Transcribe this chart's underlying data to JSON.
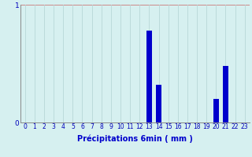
{
  "title": "",
  "xlabel": "Précipitations 6min ( mm )",
  "ylabel": "",
  "xlim": [
    -0.5,
    23.5
  ],
  "ylim": [
    0,
    1.0
  ],
  "yticks": [
    0,
    1
  ],
  "xticks": [
    0,
    1,
    2,
    3,
    4,
    5,
    6,
    7,
    8,
    9,
    10,
    11,
    12,
    13,
    14,
    15,
    16,
    17,
    18,
    19,
    20,
    21,
    22,
    23
  ],
  "bar_color": "#0000cc",
  "background_color": "#d6f0f0",
  "grid_color": "#b8d8d8",
  "values": [
    0,
    0,
    0,
    0,
    0,
    0,
    0,
    0,
    0,
    0,
    0,
    0,
    0,
    0.78,
    0.32,
    0,
    0,
    0,
    0,
    0,
    0.2,
    0.48,
    0,
    0
  ],
  "bar_width": 0.6
}
